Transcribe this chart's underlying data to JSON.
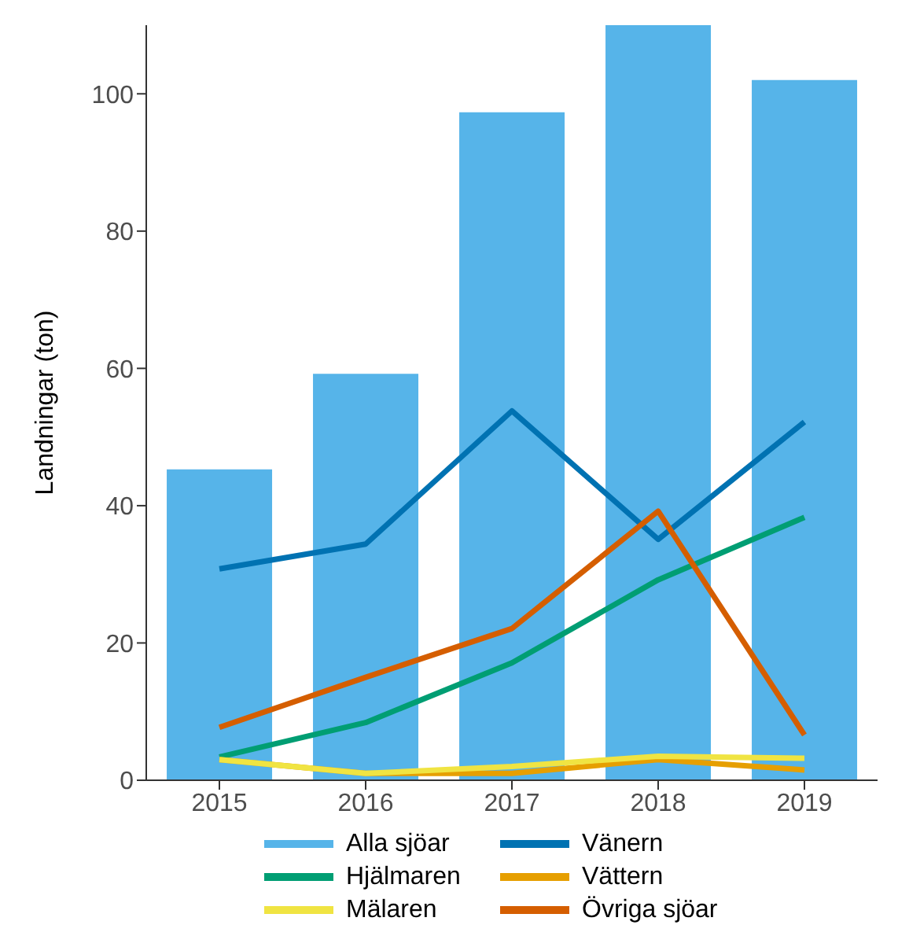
{
  "chart_data": {
    "type": "line",
    "ylabel": "Landningar (ton)",
    "categories": [
      "2015",
      "2016",
      "2017",
      "2018",
      "2019"
    ],
    "series": [
      {
        "name": "Alla sjöar",
        "type": "bar",
        "color": "#56b4e9",
        "values": [
          45.3,
          59.2,
          97.3,
          110,
          102
        ]
      },
      {
        "name": "Vänern",
        "color": "#0072b2",
        "values": [
          30.8,
          34.4,
          53.8,
          35.1,
          52.2
        ]
      },
      {
        "name": "Hjälmaren",
        "color": "#009e73",
        "values": [
          3.4,
          8.4,
          17.1,
          29.2,
          38.3
        ]
      },
      {
        "name": "Vättern",
        "color": "#e69f00",
        "values": [
          3,
          1,
          1,
          3,
          1.5
        ]
      },
      {
        "name": "Mälaren",
        "color": "#f0e442",
        "values": [
          3,
          1,
          2,
          3.5,
          3.2
        ]
      },
      {
        "name": "Övriga sjöar",
        "color": "#d55e00",
        "values": [
          7.7,
          15,
          22.1,
          39.2,
          6.6
        ]
      }
    ],
    "ylim": [
      0,
      110
    ],
    "yticks": [
      0,
      20,
      40,
      60,
      80,
      100
    ],
    "grid": false,
    "legend": "bottom",
    "marker": "none",
    "line_style": "solid"
  }
}
